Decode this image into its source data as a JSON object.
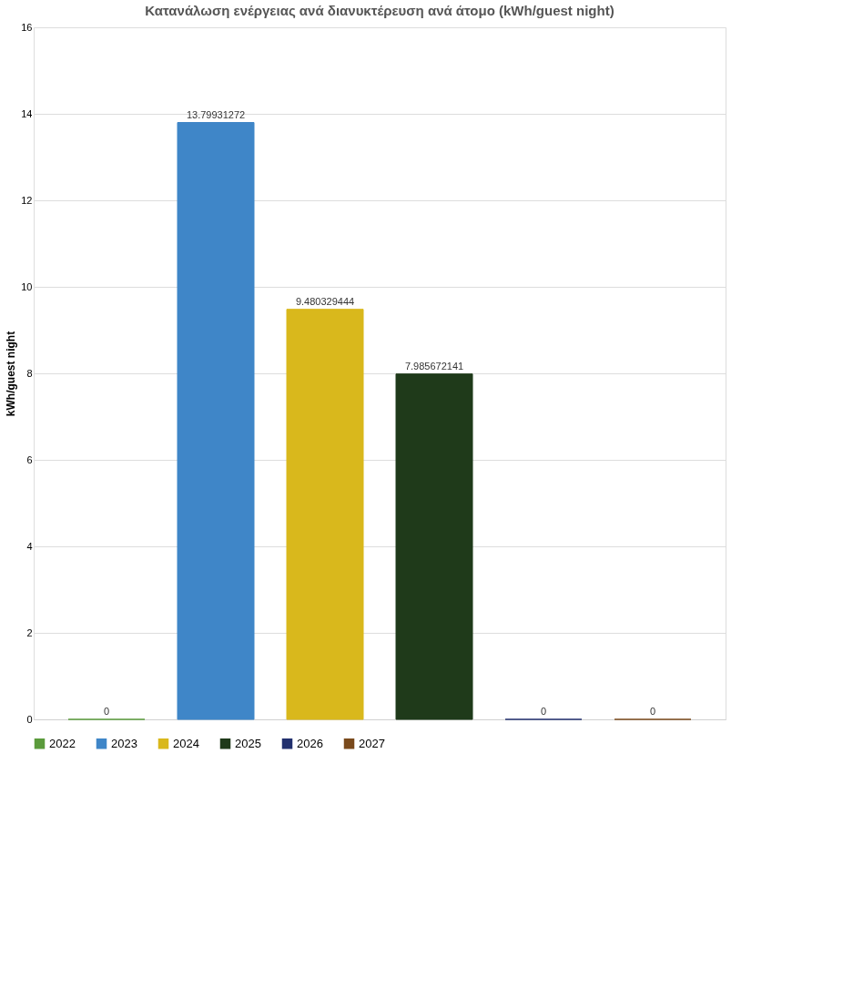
{
  "chart_data": {
    "type": "bar",
    "title": "Κατανάλωση ενέργειας ανά διανυκτέρευση ανά άτομο (kWh/guest night)",
    "ylabel": "kWh/guest night",
    "categories": [
      null
    ],
    "series": [
      {
        "name": "2022",
        "color": "#5b9b3c",
        "values": [
          0
        ]
      },
      {
        "name": "2023",
        "color": "#3f86c8",
        "values": [
          13.79931272
        ]
      },
      {
        "name": "2024",
        "color": "#d9b81c",
        "values": [
          9.480329444
        ]
      },
      {
        "name": "2025",
        "color": "#1f3a1a",
        "values": [
          7.985672141
        ]
      },
      {
        "name": "2026",
        "color": "#22306e",
        "values": [
          0
        ]
      },
      {
        "name": "2027",
        "color": "#7a4a1c",
        "values": [
          0
        ]
      }
    ],
    "ylim": [
      0,
      16
    ],
    "yticks": [
      0,
      2,
      4,
      6,
      8,
      10,
      12,
      14,
      16
    ],
    "grid": "y",
    "legend": "bottom",
    "data_labels": true
  }
}
